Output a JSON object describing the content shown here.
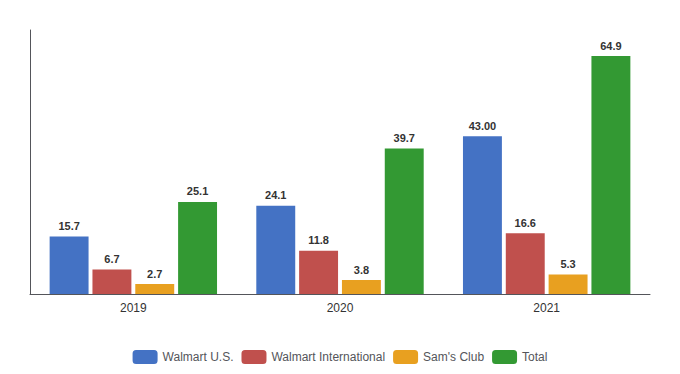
{
  "chart_data": {
    "type": "bar",
    "categories": [
      "2019",
      "2020",
      "2021"
    ],
    "series": [
      {
        "name": "Walmart U.S.",
        "color": "#4472C4",
        "values": [
          15.7,
          24.1,
          43.0
        ],
        "value_labels": [
          "15.7",
          "24.1",
          "43.00"
        ]
      },
      {
        "name": "Walmart International",
        "color": "#C0504D",
        "values": [
          6.7,
          11.8,
          16.6
        ],
        "value_labels": [
          "6.7",
          "11.8",
          "16.6"
        ]
      },
      {
        "name": "Sam's Club",
        "color": "#E8A020",
        "values": [
          2.7,
          3.8,
          5.3
        ],
        "value_labels": [
          "2.7",
          "3.8",
          "5.3"
        ]
      },
      {
        "name": "Total",
        "color": "#339933",
        "values": [
          25.1,
          39.7,
          64.9
        ],
        "value_labels": [
          "25.1",
          "39.7",
          "64.9"
        ]
      }
    ],
    "ylim": [
      0,
      72
    ],
    "tick_labels": "x",
    "grid": false,
    "legend": "bottom",
    "data_labels": true
  }
}
